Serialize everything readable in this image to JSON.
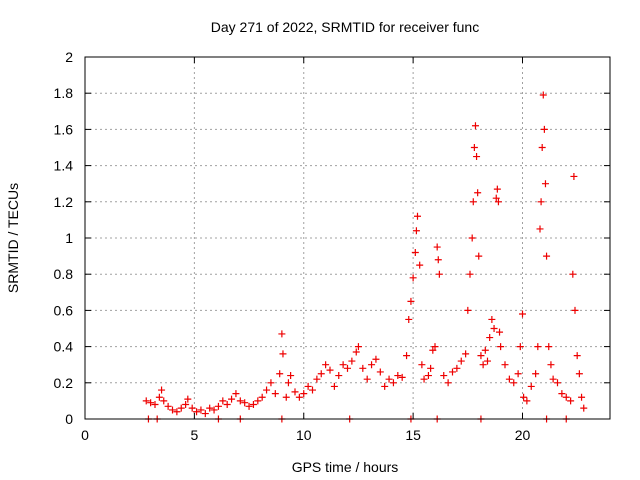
{
  "chart_data": {
    "type": "scatter",
    "title": "Day 271 of 2022, SRMTID for receiver func",
    "xlabel": "GPS time / hours",
    "ylabel": "SRMTID / TECUs",
    "xlim": [
      0,
      24
    ],
    "ylim": [
      0,
      2
    ],
    "xticks": [
      0,
      5,
      10,
      15,
      20
    ],
    "yticks": [
      0,
      0.2,
      0.4,
      0.6,
      0.8,
      1,
      1.2,
      1.4,
      1.6,
      1.8,
      2
    ],
    "xtick_labels": [
      "0",
      "5",
      "10",
      "15",
      "20"
    ],
    "ytick_labels": [
      "0",
      "0.2",
      "0.4",
      "0.6",
      "0.8",
      "1",
      "1.2",
      "1.4",
      "1.6",
      "1.8",
      "2"
    ],
    "grid": true,
    "marker": "+",
    "color": "#ee0000",
    "series": [
      {
        "name": "SRMTID",
        "points": [
          [
            2.8,
            0.1
          ],
          [
            3.0,
            0.09
          ],
          [
            3.2,
            0.08
          ],
          [
            3.4,
            0.12
          ],
          [
            3.5,
            0.16
          ],
          [
            3.6,
            0.1
          ],
          [
            3.8,
            0.07
          ],
          [
            4.0,
            0.05
          ],
          [
            4.2,
            0.04
          ],
          [
            4.4,
            0.06
          ],
          [
            4.6,
            0.08
          ],
          [
            4.7,
            0.11
          ],
          [
            4.9,
            0.06
          ],
          [
            5.1,
            0.04
          ],
          [
            5.3,
            0.05
          ],
          [
            5.5,
            0.03
          ],
          [
            5.7,
            0.06
          ],
          [
            5.9,
            0.05
          ],
          [
            6.1,
            0.07
          ],
          [
            6.3,
            0.1
          ],
          [
            6.5,
            0.08
          ],
          [
            6.7,
            0.11
          ],
          [
            6.9,
            0.14
          ],
          [
            7.1,
            0.1
          ],
          [
            7.3,
            0.09
          ],
          [
            7.5,
            0.07
          ],
          [
            7.7,
            0.08
          ],
          [
            7.9,
            0.1
          ],
          [
            8.1,
            0.12
          ],
          [
            8.3,
            0.16
          ],
          [
            8.5,
            0.2
          ],
          [
            8.7,
            0.14
          ],
          [
            8.9,
            0.25
          ],
          [
            9.0,
            0.47
          ],
          [
            9.05,
            0.36
          ],
          [
            9.2,
            0.12
          ],
          [
            9.3,
            0.2
          ],
          [
            9.4,
            0.24
          ],
          [
            9.6,
            0.15
          ],
          [
            9.8,
            0.12
          ],
          [
            10.0,
            0.14
          ],
          [
            10.2,
            0.18
          ],
          [
            10.4,
            0.16
          ],
          [
            10.6,
            0.22
          ],
          [
            10.8,
            0.25
          ],
          [
            11.0,
            0.3
          ],
          [
            11.2,
            0.27
          ],
          [
            11.4,
            0.18
          ],
          [
            11.6,
            0.24
          ],
          [
            11.8,
            0.3
          ],
          [
            12.0,
            0.28
          ],
          [
            12.2,
            0.32
          ],
          [
            12.4,
            0.37
          ],
          [
            12.5,
            0.4
          ],
          [
            12.7,
            0.28
          ],
          [
            12.9,
            0.22
          ],
          [
            13.1,
            0.3
          ],
          [
            13.3,
            0.33
          ],
          [
            13.5,
            0.26
          ],
          [
            13.7,
            0.18
          ],
          [
            13.9,
            0.22
          ],
          [
            14.1,
            0.2
          ],
          [
            14.3,
            0.24
          ],
          [
            14.5,
            0.23
          ],
          [
            14.7,
            0.35
          ],
          [
            14.8,
            0.55
          ],
          [
            14.9,
            0.65
          ],
          [
            15.0,
            0.78
          ],
          [
            15.1,
            0.92
          ],
          [
            15.15,
            1.04
          ],
          [
            15.2,
            1.12
          ],
          [
            15.3,
            0.85
          ],
          [
            15.4,
            0.3
          ],
          [
            15.5,
            0.22
          ],
          [
            15.7,
            0.24
          ],
          [
            15.8,
            0.28
          ],
          [
            15.9,
            0.38
          ],
          [
            16.0,
            0.4
          ],
          [
            16.1,
            0.95
          ],
          [
            16.15,
            0.88
          ],
          [
            16.2,
            0.8
          ],
          [
            16.4,
            0.24
          ],
          [
            16.6,
            0.2
          ],
          [
            16.8,
            0.26
          ],
          [
            17.0,
            0.28
          ],
          [
            17.2,
            0.32
          ],
          [
            17.4,
            0.36
          ],
          [
            17.5,
            0.6
          ],
          [
            17.6,
            0.8
          ],
          [
            17.7,
            1.0
          ],
          [
            17.75,
            1.2
          ],
          [
            17.8,
            1.5
          ],
          [
            17.85,
            1.62
          ],
          [
            17.9,
            1.45
          ],
          [
            17.95,
            1.25
          ],
          [
            18.0,
            0.9
          ],
          [
            18.1,
            0.35
          ],
          [
            18.2,
            0.3
          ],
          [
            18.3,
            0.38
          ],
          [
            18.4,
            0.32
          ],
          [
            18.5,
            0.45
          ],
          [
            18.6,
            0.55
          ],
          [
            18.7,
            0.5
          ],
          [
            18.8,
            1.22
          ],
          [
            18.85,
            1.27
          ],
          [
            18.9,
            1.2
          ],
          [
            18.95,
            0.48
          ],
          [
            19.0,
            0.4
          ],
          [
            19.2,
            0.3
          ],
          [
            19.4,
            0.22
          ],
          [
            19.6,
            0.2
          ],
          [
            19.8,
            0.25
          ],
          [
            19.9,
            0.4
          ],
          [
            20.0,
            0.58
          ],
          [
            20.05,
            0.12
          ],
          [
            20.2,
            0.1
          ],
          [
            20.4,
            0.18
          ],
          [
            20.6,
            0.25
          ],
          [
            20.7,
            0.4
          ],
          [
            20.8,
            1.05
          ],
          [
            20.85,
            1.2
          ],
          [
            20.9,
            1.5
          ],
          [
            20.95,
            1.79
          ],
          [
            21.0,
            1.6
          ],
          [
            21.05,
            1.3
          ],
          [
            21.1,
            0.9
          ],
          [
            21.2,
            0.4
          ],
          [
            21.3,
            0.3
          ],
          [
            21.4,
            0.22
          ],
          [
            21.6,
            0.2
          ],
          [
            21.8,
            0.14
          ],
          [
            22.0,
            0.12
          ],
          [
            22.2,
            0.1
          ],
          [
            22.3,
            0.8
          ],
          [
            22.35,
            1.34
          ],
          [
            22.4,
            0.6
          ],
          [
            22.5,
            0.35
          ],
          [
            22.6,
            0.25
          ],
          [
            22.7,
            0.12
          ],
          [
            22.8,
            0.06
          ],
          [
            2.9,
            0.0
          ],
          [
            3.3,
            0.0
          ],
          [
            6.1,
            0.0
          ],
          [
            7.1,
            0.0
          ],
          [
            9.0,
            0.0
          ],
          [
            12.1,
            0.0
          ],
          [
            14.9,
            0.0
          ],
          [
            16.1,
            0.0
          ],
          [
            18.1,
            0.0
          ],
          [
            21.1,
            0.0
          ],
          [
            22.0,
            0.0
          ]
        ]
      }
    ]
  }
}
